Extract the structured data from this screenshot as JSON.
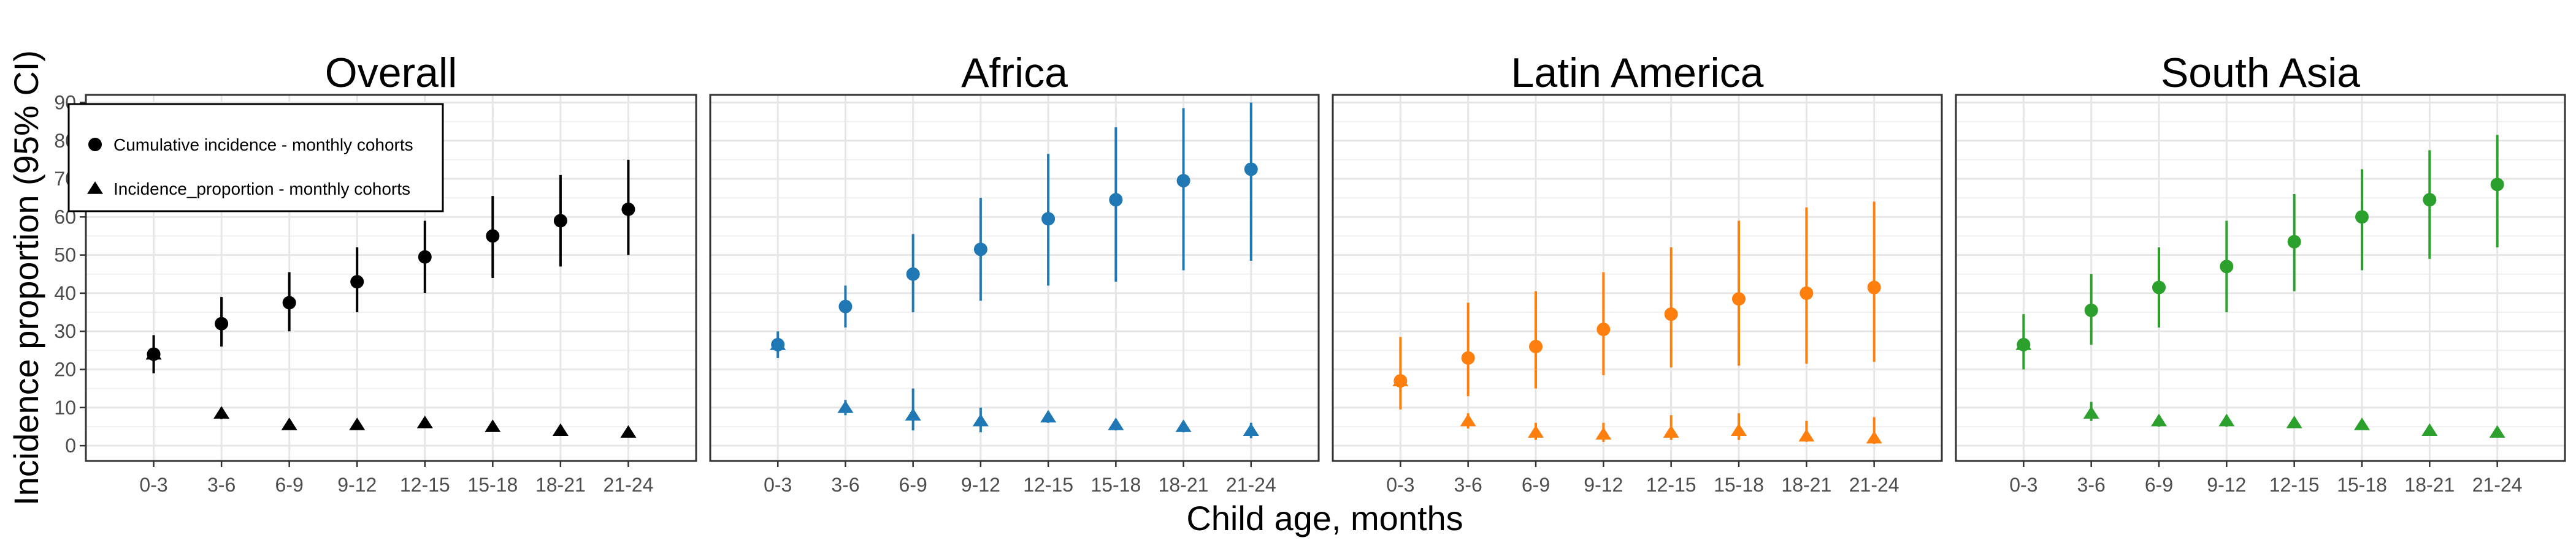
{
  "figure": {
    "ylabel": "Incidence proportion (95% CI)",
    "xlabel": "Child age, months"
  },
  "legend": {
    "items": [
      {
        "label": "Cumulative incidence - monthly cohorts",
        "shape": "circle"
      },
      {
        "label": "Incidence_proportion - monthly cohorts",
        "shape": "triangle"
      }
    ]
  },
  "chart_data": [
    {
      "type": "scatter",
      "title": "Overall",
      "color": "#000000",
      "categories": [
        "0-3",
        "3-6",
        "6-9",
        "9-12",
        "12-15",
        "15-18",
        "18-21",
        "21-24"
      ],
      "ylim": [
        -4,
        92
      ],
      "yticks": [
        0,
        10,
        20,
        30,
        40,
        50,
        60,
        70,
        80,
        90
      ],
      "grid": true,
      "legend_position": "top-left",
      "series": [
        {
          "name": "Cumulative incidence - monthly cohorts",
          "shape": "circle",
          "values": [
            24,
            32,
            37.5,
            43,
            49.5,
            55,
            59,
            62
          ],
          "lower": [
            19,
            26,
            30,
            35,
            40,
            44,
            47,
            50
          ],
          "upper": [
            29,
            39,
            45.5,
            52,
            59,
            65.5,
            71,
            75
          ]
        },
        {
          "name": "Incidence_proportion - monthly cohorts",
          "shape": "triangle",
          "values": [
            24,
            8.5,
            5.5,
            5.5,
            6,
            5,
            4,
            3.5
          ],
          "lower": [
            22,
            7,
            4.5,
            4.5,
            5,
            4,
            3,
            2.5
          ],
          "upper": [
            26,
            10,
            6.5,
            6.5,
            7,
            6,
            5,
            4.5
          ]
        }
      ]
    },
    {
      "type": "scatter",
      "title": "Africa",
      "color": "#1f77b4",
      "categories": [
        "0-3",
        "3-6",
        "6-9",
        "9-12",
        "12-15",
        "15-18",
        "18-21",
        "21-24"
      ],
      "ylim": [
        -4,
        92
      ],
      "yticks": [
        0,
        10,
        20,
        30,
        40,
        50,
        60,
        70,
        80,
        90
      ],
      "grid": true,
      "series": [
        {
          "name": "Cumulative incidence - monthly cohorts",
          "shape": "circle",
          "values": [
            26.5,
            36.5,
            45,
            51.5,
            59.5,
            64.5,
            69.5,
            72.5
          ],
          "lower": [
            23,
            31,
            35,
            38,
            42,
            43,
            46,
            48.5
          ],
          "upper": [
            30,
            42,
            55.5,
            65,
            76.5,
            83.5,
            88.5,
            90
          ]
        },
        {
          "name": "Incidence_proportion - monthly cohorts",
          "shape": "triangle",
          "values": [
            26.5,
            10,
            8,
            6.5,
            7.5,
            5.5,
            5,
            4
          ],
          "lower": [
            24.5,
            8,
            4,
            3.5,
            6,
            4,
            3.5,
            2
          ],
          "upper": [
            28.5,
            12,
            15,
            10,
            9,
            7,
            6.5,
            6
          ]
        }
      ]
    },
    {
      "type": "scatter",
      "title": "Latin America",
      "color": "#ff7f0e",
      "categories": [
        "0-3",
        "3-6",
        "6-9",
        "9-12",
        "12-15",
        "15-18",
        "18-21",
        "21-24"
      ],
      "ylim": [
        -4,
        92
      ],
      "yticks": [
        0,
        10,
        20,
        30,
        40,
        50,
        60,
        70,
        80,
        90
      ],
      "grid": true,
      "series": [
        {
          "name": "Cumulative incidence - monthly cohorts",
          "shape": "circle",
          "values": [
            17,
            23,
            26,
            30.5,
            34.5,
            38.5,
            40,
            41.5
          ],
          "lower": [
            9.5,
            13,
            15,
            18.5,
            20.5,
            21,
            21.5,
            22
          ],
          "upper": [
            28.5,
            37.5,
            40.5,
            45.5,
            52,
            59,
            62.5,
            64
          ]
        },
        {
          "name": "Incidence_proportion - monthly cohorts",
          "shape": "triangle",
          "values": [
            17,
            6.5,
            3.5,
            3,
            3.5,
            4,
            2.5,
            2
          ],
          "lower": [
            15,
            4.5,
            1.5,
            1,
            1.5,
            1.5,
            1,
            0.5
          ],
          "upper": [
            19,
            8.5,
            6,
            6,
            8,
            8.5,
            6.5,
            7.5
          ]
        }
      ]
    },
    {
      "type": "scatter",
      "title": "South Asia",
      "color": "#2ca02c",
      "categories": [
        "0-3",
        "3-6",
        "6-9",
        "9-12",
        "12-15",
        "15-18",
        "18-21",
        "21-24"
      ],
      "ylim": [
        -4,
        92
      ],
      "yticks": [
        0,
        10,
        20,
        30,
        40,
        50,
        60,
        70,
        80,
        90
      ],
      "grid": true,
      "series": [
        {
          "name": "Cumulative incidence - monthly cohorts",
          "shape": "circle",
          "values": [
            26.5,
            35.5,
            41.5,
            47,
            53.5,
            60,
            64.5,
            68.5
          ],
          "lower": [
            20,
            26.5,
            31,
            35,
            40.5,
            46,
            49,
            52
          ],
          "upper": [
            34.5,
            45,
            52,
            59,
            66,
            72.5,
            77.5,
            81.5
          ]
        },
        {
          "name": "Incidence_proportion - monthly cohorts",
          "shape": "triangle",
          "values": [
            26.5,
            8.5,
            6.5,
            6.5,
            6,
            5.5,
            4,
            3.5
          ],
          "lower": [
            24.5,
            6.5,
            5,
            5,
            5,
            4.5,
            3,
            2.5
          ],
          "upper": [
            28.5,
            11.5,
            8,
            8,
            7,
            6.5,
            5,
            4.5
          ]
        }
      ]
    }
  ]
}
